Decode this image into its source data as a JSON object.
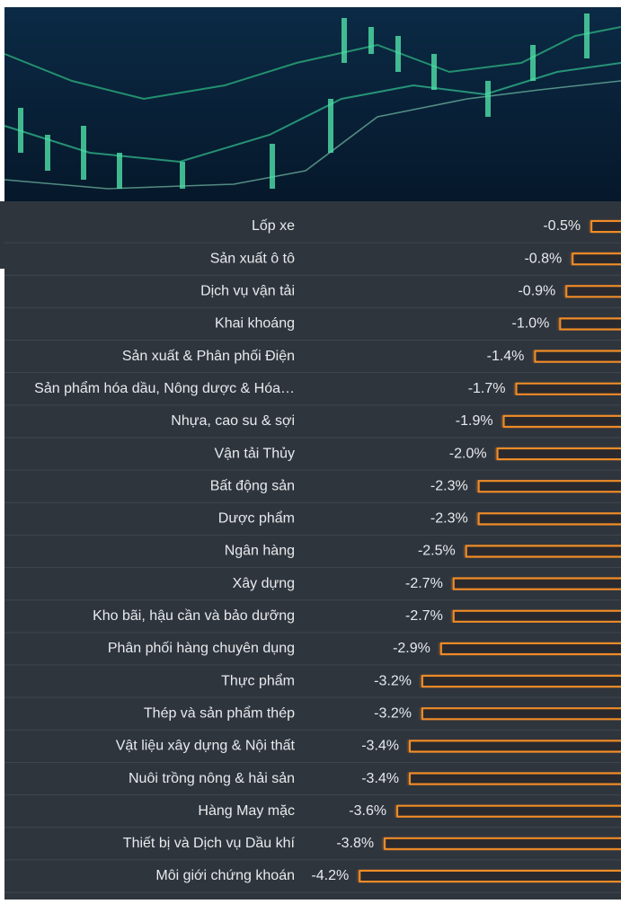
{
  "chart_data": {
    "type": "bar",
    "orientation": "horizontal",
    "color": "#f28c28",
    "categories": [
      "Lốp xe",
      "Sản xuất ô tô",
      "Dịch vụ vận tải",
      "Khai khoáng",
      "Sản xuất & Phân phối Điện",
      "Sản phẩm hóa dầu, Nông dược & Hóa…",
      "Nhựa, cao su & sợi",
      "Vận tải Thủy",
      "Bất động sản",
      "Dược phẩm",
      "Ngân hàng",
      "Xây dựng",
      "Kho bãi, hậu cần và bảo dưỡng",
      "Phân phối hàng chuyên dụng",
      "Thực phẩm",
      "Thép và sản phẩm thép",
      "Vật liệu xây dựng & Nội thất",
      "Nuôi trồng nông & hải sản",
      "Hàng May mặc",
      "Thiết bị và Dịch vụ Dầu khí",
      "Môi giới chứng khoán"
    ],
    "values": [
      -0.5,
      -0.8,
      -0.9,
      -1.0,
      -1.4,
      -1.7,
      -1.9,
      -2.0,
      -2.3,
      -2.3,
      -2.5,
      -2.7,
      -2.7,
      -2.9,
      -3.2,
      -3.2,
      -3.4,
      -3.4,
      -3.6,
      -3.8,
      -4.2
    ],
    "value_labels": [
      "-0.5%",
      "-0.8%",
      "-0.9%",
      "-1.0%",
      "-1.4%",
      "-1.7%",
      "-1.9%",
      "-2.0%",
      "-2.3%",
      "-2.3%",
      "-2.5%",
      "-2.7%",
      "-2.7%",
      "-2.9%",
      "-3.2%",
      "-3.2%",
      "-3.4%",
      "-3.4%",
      "-3.6%",
      "-3.8%",
      "-4.2%"
    ]
  }
}
